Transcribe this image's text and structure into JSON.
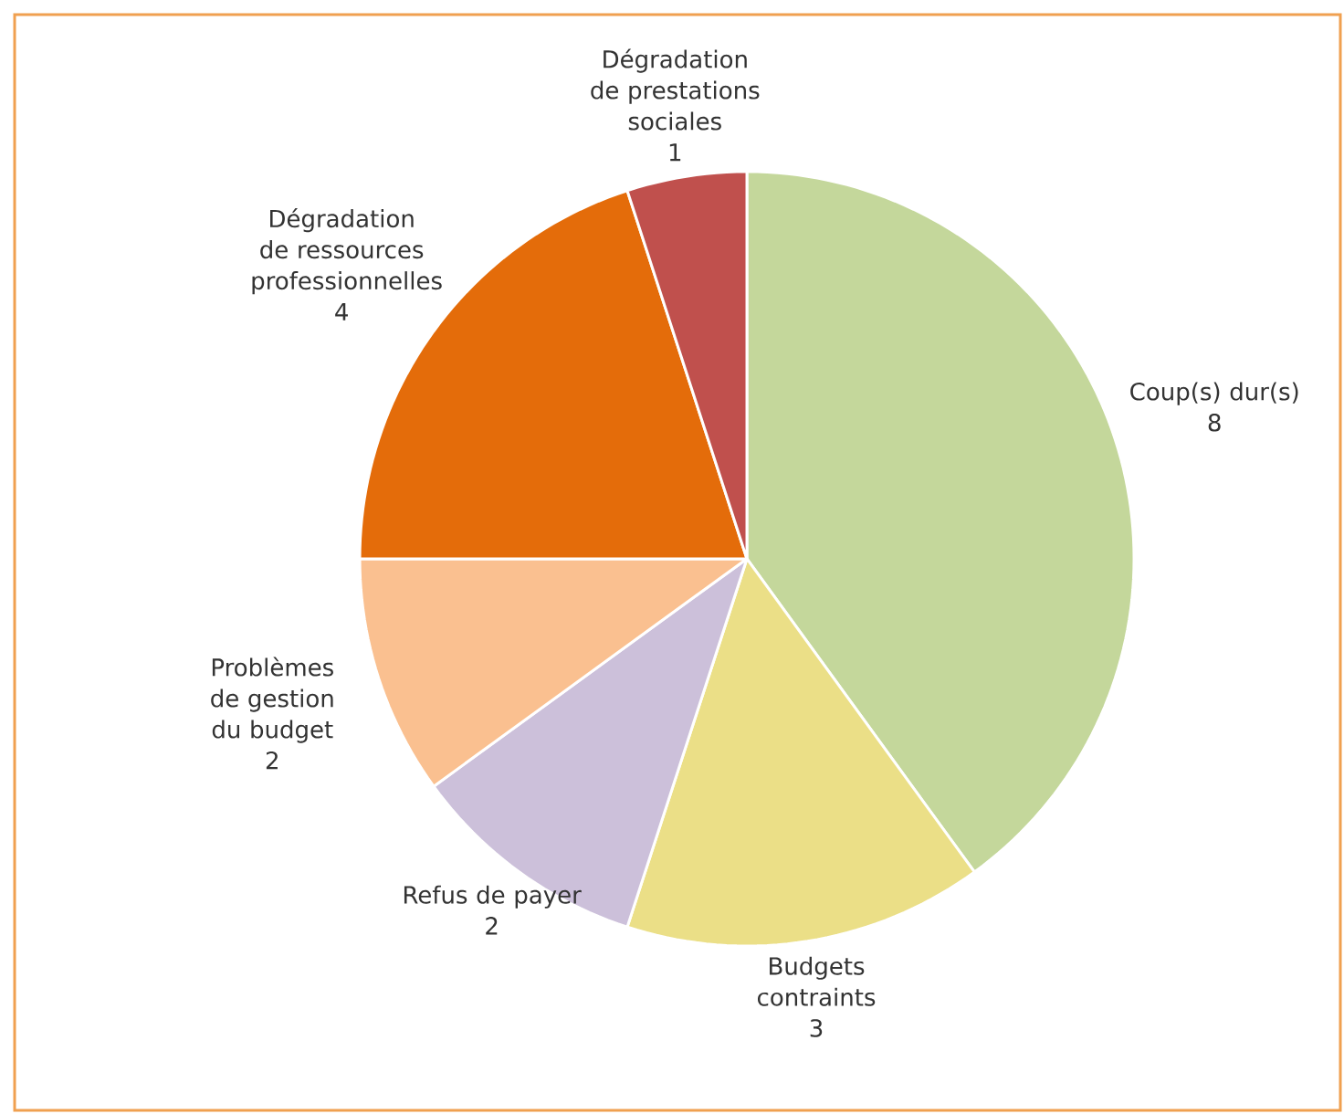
{
  "chart_data": {
    "type": "pie",
    "categories": [
      "Coup(s) dur(s)",
      "Budgets contraints",
      "Refus de payer",
      "Problèmes de gestion du budget",
      "Dégradation de ressources professionnelles",
      "Dégradation de prestations sociales"
    ],
    "values": [
      8,
      3,
      2,
      2,
      4,
      1
    ],
    "colors": [
      "#c4d79b",
      "#ebdf87",
      "#ccc0da",
      "#fac090",
      "#e46c0a",
      "#c0504d"
    ],
    "data_labels": true
  }
}
